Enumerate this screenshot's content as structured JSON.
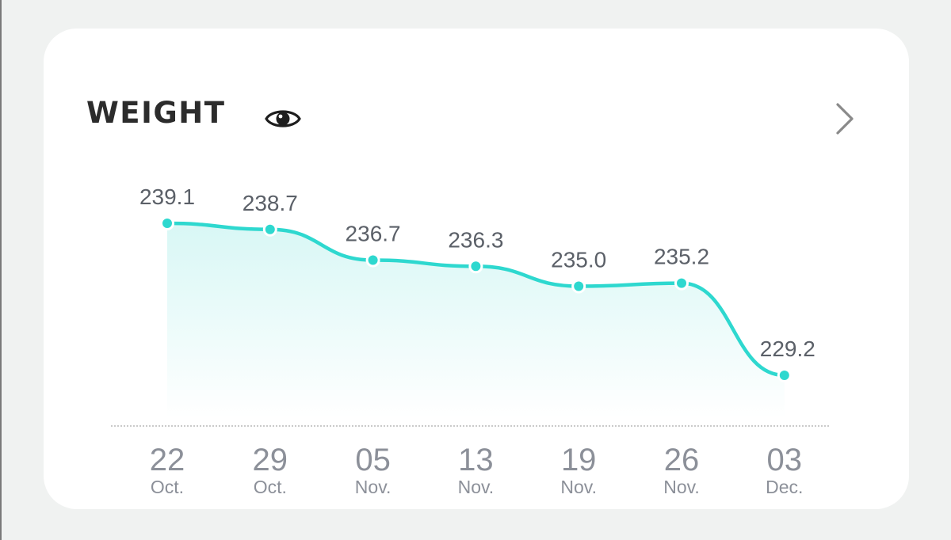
{
  "card": {
    "title": "WEIGHT",
    "visibility_icon": "eye-icon",
    "open_icon": "chevron-right-icon"
  },
  "colors": {
    "accent": "#2ed8cf",
    "area_top": "#d8f7f5",
    "value_text": "#5b6068",
    "day_text": "#8c9099",
    "title_text": "#2c2c2c",
    "baseline": "#b8b8b8"
  },
  "chart_data": {
    "type": "area",
    "x": [
      "22 Oct.",
      "29 Oct.",
      "05 Nov.",
      "13 Nov.",
      "19 Nov.",
      "26 Nov.",
      "03 Dec."
    ],
    "days": [
      "22",
      "29",
      "05",
      "13",
      "19",
      "26",
      "03"
    ],
    "months": [
      "Oct.",
      "Oct.",
      "Nov.",
      "Nov.",
      "Nov.",
      "Nov.",
      "Dec."
    ],
    "series": [
      {
        "values": [
          239.1,
          238.7,
          236.7,
          236.3,
          235.0,
          235.2,
          229.2
        ]
      }
    ],
    "labels": [
      "239.1",
      "238.7",
      "236.7",
      "236.3",
      "235.0",
      "235.2",
      "229.2"
    ],
    "grid": false
  }
}
